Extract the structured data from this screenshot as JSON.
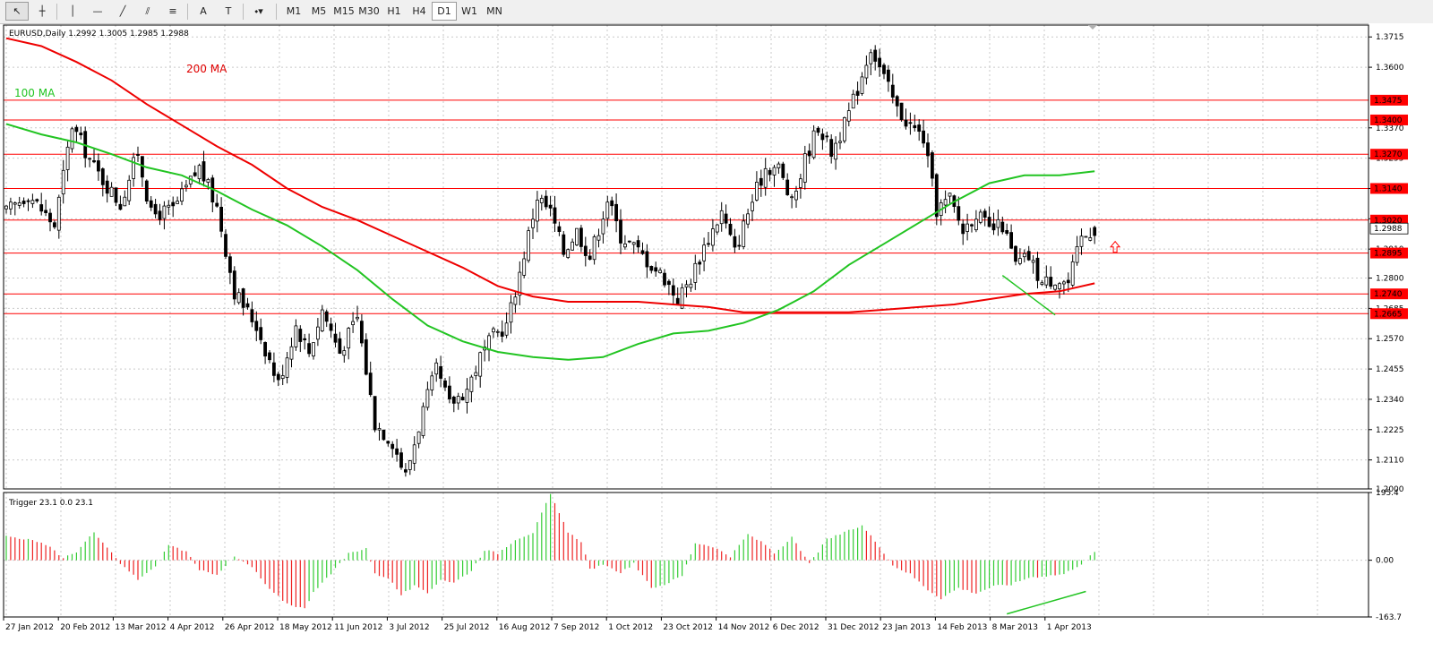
{
  "toolbar": {
    "tools": [
      {
        "name": "cursor-tool",
        "icon": "arrow-cursor-icon",
        "glyph": "↖"
      },
      {
        "name": "crosshair-tool",
        "icon": "crosshair-icon",
        "glyph": "┼"
      },
      {
        "name": "vertical-line-tool",
        "icon": "vertical-line-icon",
        "glyph": "│"
      },
      {
        "name": "horizontal-line-tool",
        "icon": "horizontal-line-icon",
        "glyph": "—"
      },
      {
        "name": "trendline-tool",
        "icon": "trendline-icon",
        "glyph": "╱"
      },
      {
        "name": "equidistant-channel-tool",
        "icon": "channel-icon",
        "glyph": "⫽"
      },
      {
        "name": "fibonacci-tool",
        "icon": "fibonacci-icon",
        "glyph": "≡"
      },
      {
        "name": "text-tool",
        "icon": "text-a-icon",
        "glyph": "A"
      },
      {
        "name": "text-label-tool",
        "icon": "text-label-icon",
        "glyph": "T"
      },
      {
        "name": "shapes-dropdown",
        "icon": "shapes-dropdown-icon",
        "glyph": "⬩▾"
      }
    ],
    "timeframes": [
      "M1",
      "M5",
      "M15",
      "M30",
      "H1",
      "H4",
      "D1",
      "W1",
      "MN"
    ],
    "active_timeframe": "D1"
  },
  "chart_data": [
    {
      "type": "candlestick",
      "symbol_info": "EURUSD,Daily  1.2992 1.3005 1.2985 1.2988",
      "ylim": [
        1.2,
        1.376
      ],
      "price_ticks": [
        "1.3715",
        "1.3600",
        "1.3370",
        "1.3255",
        "1.3140",
        "1.3025",
        "1.2910",
        "1.2800",
        "1.2685",
        "1.2570",
        "1.2455",
        "1.2340",
        "1.2225",
        "1.2110",
        "1.2000"
      ],
      "current_price": "1.2988",
      "horizontal_levels": [
        "1.3475",
        "1.3400",
        "1.3270",
        "1.3140",
        "1.3020",
        "1.2895",
        "1.2740",
        "1.2665"
      ],
      "x_dates": [
        "27 Jan 2012",
        "20 Feb 2012",
        "13 Mar 2012",
        "4 Apr 2012",
        "26 Apr 2012",
        "18 May 2012",
        "11 Jun 2012",
        "3 Jul 2012",
        "25 Jul 2012",
        "16 Aug 2012",
        "7 Sep 2012",
        "1 Oct 2012",
        "23 Oct 2012",
        "14 Nov 2012",
        "6 Dec 2012",
        "31 Dec 2012",
        "23 Jan 2013",
        "14 Feb 2013",
        "8 Mar 2013",
        "1 Apr 2013"
      ],
      "annotations": [
        "200 MA",
        "100 MA"
      ],
      "close_path": [
        [
          0,
          1.305
        ],
        [
          5,
          1.312
        ],
        [
          11,
          1.3
        ],
        [
          15,
          1.338
        ],
        [
          20,
          1.322
        ],
        [
          26,
          1.308
        ],
        [
          30,
          1.328
        ],
        [
          33,
          1.304
        ],
        [
          38,
          1.306
        ],
        [
          44,
          1.322
        ],
        [
          48,
          1.307
        ],
        [
          52,
          1.275
        ],
        [
          57,
          1.262
        ],
        [
          62,
          1.24
        ],
        [
          66,
          1.262
        ],
        [
          69,
          1.252
        ],
        [
          72,
          1.268
        ],
        [
          76,
          1.252
        ],
        [
          80,
          1.265
        ],
        [
          84,
          1.225
        ],
        [
          88,
          1.218
        ],
        [
          91,
          1.205
        ],
        [
          95,
          1.23
        ],
        [
          98,
          1.245
        ],
        [
          101,
          1.232
        ],
        [
          105,
          1.238
        ],
        [
          108,
          1.25
        ],
        [
          111,
          1.258
        ],
        [
          114,
          1.262
        ],
        [
          117,
          1.282
        ],
        [
          121,
          1.311
        ],
        [
          124,
          1.305
        ],
        [
          127,
          1.29
        ],
        [
          130,
          1.298
        ],
        [
          133,
          1.288
        ],
        [
          137,
          1.31
        ],
        [
          140,
          1.296
        ],
        [
          143,
          1.292
        ],
        [
          147,
          1.285
        ],
        [
          150,
          1.28
        ],
        [
          153,
          1.272
        ],
        [
          156,
          1.28
        ],
        [
          159,
          1.292
        ],
        [
          163,
          1.305
        ],
        [
          166,
          1.29
        ],
        [
          169,
          1.305
        ],
        [
          173,
          1.322
        ],
        [
          176,
          1.322
        ],
        [
          179,
          1.308
        ],
        [
          182,
          1.325
        ],
        [
          185,
          1.338
        ],
        [
          188,
          1.328
        ],
        [
          191,
          1.338
        ],
        [
          194,
          1.352
        ],
        [
          197,
          1.368
        ],
        [
          200,
          1.356
        ],
        [
          203,
          1.344
        ],
        [
          206,
          1.338
        ],
        [
          209,
          1.333
        ],
        [
          212,
          1.306
        ],
        [
          215,
          1.31
        ],
        [
          218,
          1.298
        ],
        [
          221,
          1.305
        ],
        [
          224,
          1.298
        ],
        [
          227,
          1.3
        ],
        [
          230,
          1.285
        ],
        [
          233,
          1.288
        ],
        [
          236,
          1.278
        ],
        [
          239,
          1.28
        ],
        [
          242,
          1.278
        ],
        [
          245,
          1.295
        ],
        [
          248,
          1.2988
        ]
      ],
      "ma200": [
        [
          0,
          1.371
        ],
        [
          8,
          1.368
        ],
        [
          16,
          1.362
        ],
        [
          24,
          1.355
        ],
        [
          32,
          1.346
        ],
        [
          40,
          1.338
        ],
        [
          48,
          1.33
        ],
        [
          56,
          1.323
        ],
        [
          64,
          1.314
        ],
        [
          72,
          1.307
        ],
        [
          80,
          1.302
        ],
        [
          88,
          1.296
        ],
        [
          96,
          1.29
        ],
        [
          104,
          1.284
        ],
        [
          112,
          1.277
        ],
        [
          120,
          1.273
        ],
        [
          128,
          1.271
        ],
        [
          136,
          1.271
        ],
        [
          144,
          1.271
        ],
        [
          152,
          1.27
        ],
        [
          160,
          1.269
        ],
        [
          168,
          1.267
        ],
        [
          176,
          1.267
        ],
        [
          184,
          1.267
        ],
        [
          192,
          1.267
        ],
        [
          200,
          1.268
        ],
        [
          208,
          1.269
        ],
        [
          216,
          1.27
        ],
        [
          224,
          1.272
        ],
        [
          232,
          1.274
        ],
        [
          240,
          1.275
        ],
        [
          248,
          1.278
        ]
      ],
      "ma100": [
        [
          0,
          1.3385
        ],
        [
          8,
          1.3345
        ],
        [
          16,
          1.3315
        ],
        [
          24,
          1.327
        ],
        [
          32,
          1.322
        ],
        [
          40,
          1.319
        ],
        [
          48,
          1.313
        ],
        [
          56,
          1.306
        ],
        [
          64,
          1.3
        ],
        [
          72,
          1.292
        ],
        [
          80,
          1.283
        ],
        [
          88,
          1.272
        ],
        [
          96,
          1.262
        ],
        [
          104,
          1.256
        ],
        [
          112,
          1.252
        ],
        [
          120,
          1.25
        ],
        [
          128,
          1.249
        ],
        [
          136,
          1.25
        ],
        [
          144,
          1.255
        ],
        [
          152,
          1.259
        ],
        [
          160,
          1.26
        ],
        [
          168,
          1.263
        ],
        [
          176,
          1.268
        ],
        [
          184,
          1.275
        ],
        [
          192,
          1.285
        ],
        [
          200,
          1.293
        ],
        [
          208,
          1.301
        ],
        [
          216,
          1.309
        ],
        [
          224,
          1.316
        ],
        [
          232,
          1.319
        ],
        [
          240,
          1.319
        ],
        [
          248,
          1.3205
        ]
      ],
      "trend_line": [
        [
          227,
          1.281
        ],
        [
          239,
          1.266
        ]
      ]
    },
    {
      "type": "bar",
      "indicator_info": "Trigger 23.1 0.0 23.1",
      "ylim": [
        -163.7,
        195.4
      ],
      "ticks": [
        "195.4",
        "0.00",
        "-163.7"
      ],
      "values_path": [
        [
          0,
          70
        ],
        [
          5,
          60
        ],
        [
          10,
          40
        ],
        [
          13,
          5
        ],
        [
          16,
          25
        ],
        [
          20,
          80
        ],
        [
          23,
          35
        ],
        [
          26,
          -10
        ],
        [
          30,
          -55
        ],
        [
          34,
          -20
        ],
        [
          37,
          45
        ],
        [
          41,
          25
        ],
        [
          44,
          -30
        ],
        [
          48,
          -40
        ],
        [
          52,
          10
        ],
        [
          56,
          -20
        ],
        [
          60,
          -85
        ],
        [
          64,
          -125
        ],
        [
          68,
          -140
        ],
        [
          70,
          -90
        ],
        [
          74,
          -40
        ],
        [
          78,
          20
        ],
        [
          82,
          35
        ],
        [
          84,
          -40
        ],
        [
          87,
          -50
        ],
        [
          90,
          -100
        ],
        [
          93,
          -75
        ],
        [
          96,
          -95
        ],
        [
          99,
          -55
        ],
        [
          102,
          -65
        ],
        [
          106,
          -30
        ],
        [
          109,
          30
        ],
        [
          112,
          20
        ],
        [
          116,
          60
        ],
        [
          120,
          80
        ],
        [
          124,
          190
        ],
        [
          128,
          80
        ],
        [
          131,
          55
        ],
        [
          133,
          -25
        ],
        [
          136,
          -15
        ],
        [
          140,
          -35
        ],
        [
          143,
          -10
        ],
        [
          147,
          -80
        ],
        [
          150,
          -70
        ],
        [
          154,
          -45
        ],
        [
          157,
          50
        ],
        [
          161,
          40
        ],
        [
          165,
          10
        ],
        [
          169,
          75
        ],
        [
          173,
          45
        ],
        [
          175,
          20
        ],
        [
          179,
          65
        ],
        [
          183,
          -10
        ],
        [
          187,
          60
        ],
        [
          191,
          80
        ],
        [
          195,
          100
        ],
        [
          199,
          40
        ],
        [
          202,
          -15
        ],
        [
          206,
          -40
        ],
        [
          210,
          -85
        ],
        [
          213,
          -110
        ],
        [
          217,
          -80
        ],
        [
          221,
          -95
        ],
        [
          225,
          -75
        ],
        [
          229,
          -70
        ],
        [
          233,
          -50
        ],
        [
          237,
          -45
        ],
        [
          241,
          -40
        ],
        [
          245,
          -10
        ],
        [
          248,
          23
        ]
      ],
      "trend_line": [
        [
          228,
          -155
        ],
        [
          246,
          -90
        ]
      ]
    }
  ]
}
